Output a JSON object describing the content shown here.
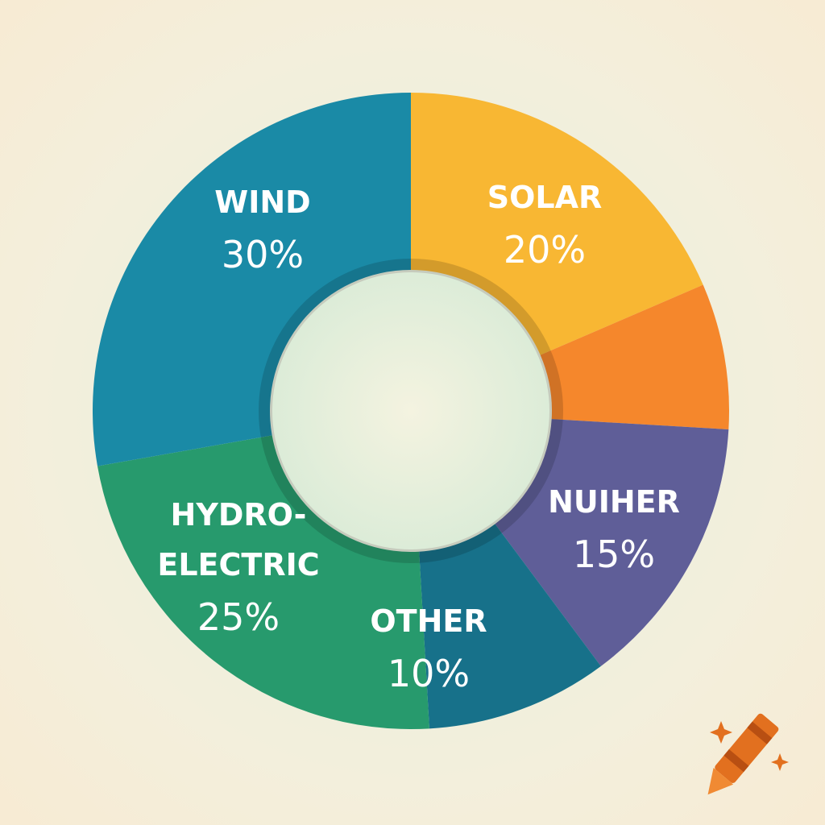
{
  "chart_data": {
    "type": "donut",
    "categories": [
      "SOLAR",
      null,
      "NUIHER",
      "OTHER",
      "HYDRO-ELECTRIC",
      "WIND"
    ],
    "values": [
      20,
      8,
      15,
      10,
      25,
      30
    ],
    "value_labels": [
      "20%",
      null,
      "15%",
      "10%",
      "25%",
      "30%"
    ],
    "colors": [
      "#f8b733",
      "#f5872c",
      "#5f5e98",
      "#17718a",
      "#279a6d",
      "#1a8aa6"
    ]
  }
}
